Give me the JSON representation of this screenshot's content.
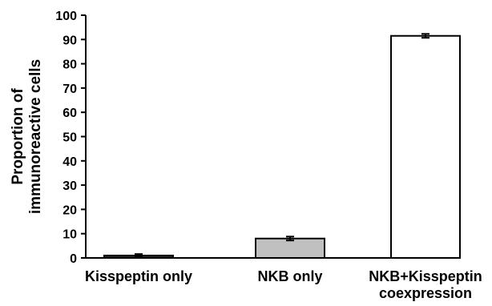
{
  "chart_data": {
    "type": "bar",
    "title": "",
    "xlabel": "",
    "ylabel_lines": [
      "Proportion of",
      "immunoreactive cells"
    ],
    "ylim": [
      0,
      100
    ],
    "yticks": [
      0,
      10,
      20,
      30,
      40,
      50,
      60,
      70,
      80,
      90,
      100
    ],
    "ytick_labels": [
      "0",
      "10",
      "20",
      "30",
      "40",
      "50",
      "60",
      "70",
      "80",
      "90",
      "100"
    ],
    "categories": [
      {
        "lines": [
          "Kisspeptin only"
        ]
      },
      {
        "lines": [
          "NKB only"
        ]
      },
      {
        "lines": [
          "NKB+Kisspeptin",
          "coexpression"
        ]
      }
    ],
    "values": [
      1,
      8,
      91.5
    ],
    "errors": [
      0.6,
      0.8,
      0.8
    ],
    "bar_colors": [
      "#2a2a2a",
      "#c0c0c0",
      "#ffffff"
    ],
    "bar_stroke": "#000000",
    "axis_color": "#000000",
    "grid": false,
    "legend": "none"
  }
}
